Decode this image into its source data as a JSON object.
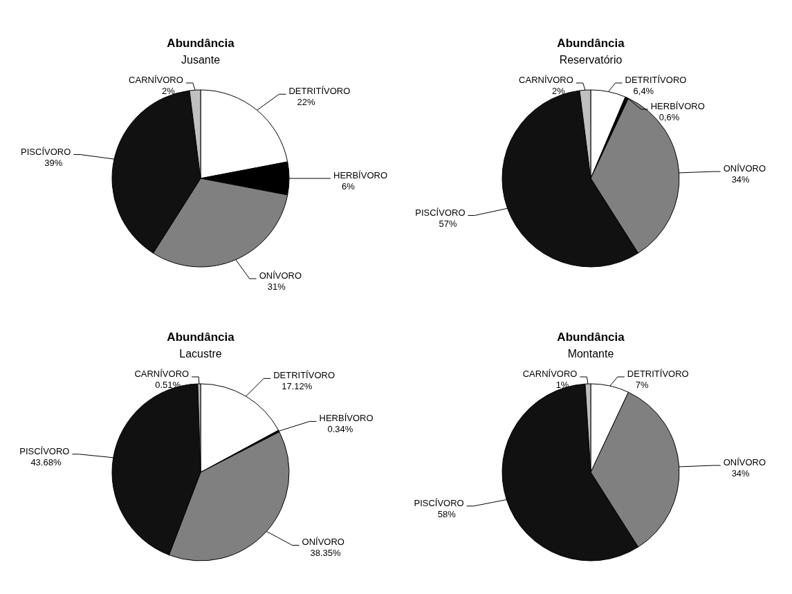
{
  "chart_data": [
    {
      "type": "pie",
      "title": "Abundância",
      "subtitle": "Jusante",
      "categories": [
        "DETRITÍVORO",
        "HERBÍVORO",
        "ONÍVORO",
        "PISCÍVORO",
        "CARNÍVORO"
      ],
      "values": [
        22,
        6,
        31,
        39,
        2
      ],
      "value_labels": [
        "22%",
        "6%",
        "31%",
        "39%",
        "2%"
      ],
      "colors": [
        "#ffffff",
        "#000000",
        "#808080",
        "#111111",
        "#c0c0c0"
      ]
    },
    {
      "type": "pie",
      "title": "Abundância",
      "subtitle": "Reservatório",
      "categories": [
        "DETRITÍVORO",
        "HERBÍVORO",
        "ONÍVORO",
        "PISCÍVORO",
        "CARNÍVORO"
      ],
      "values": [
        6.4,
        0.6,
        34,
        57,
        2
      ],
      "value_labels": [
        "6,4%",
        "0,6%",
        "34%",
        "57%",
        "2%"
      ],
      "colors": [
        "#ffffff",
        "#000000",
        "#808080",
        "#111111",
        "#c0c0c0"
      ]
    },
    {
      "type": "pie",
      "title": "Abundância",
      "subtitle": "Lacustre",
      "categories": [
        "DETRITÍVORO",
        "HERBÍVORO",
        "ONÍVORO",
        "PISCÍVORO",
        "CARNÍVORO"
      ],
      "values": [
        17.12,
        0.34,
        38.35,
        43.68,
        0.51
      ],
      "value_labels": [
        "17.12%",
        "0.34%",
        "38.35%",
        "43.68%",
        "0.51%"
      ],
      "colors": [
        "#ffffff",
        "#000000",
        "#808080",
        "#111111",
        "#c0c0c0"
      ]
    },
    {
      "type": "pie",
      "title": "Abundância",
      "subtitle": "Montante",
      "categories": [
        "DETRITÍVORO",
        "ONÍVORO",
        "PISCÍVORO",
        "CARNÍVORO"
      ],
      "values": [
        7,
        34,
        58,
        1
      ],
      "value_labels": [
        "7%",
        "34%",
        "58%",
        "1%"
      ],
      "colors": [
        "#ffffff",
        "#808080",
        "#111111",
        "#c0c0c0"
      ]
    }
  ]
}
